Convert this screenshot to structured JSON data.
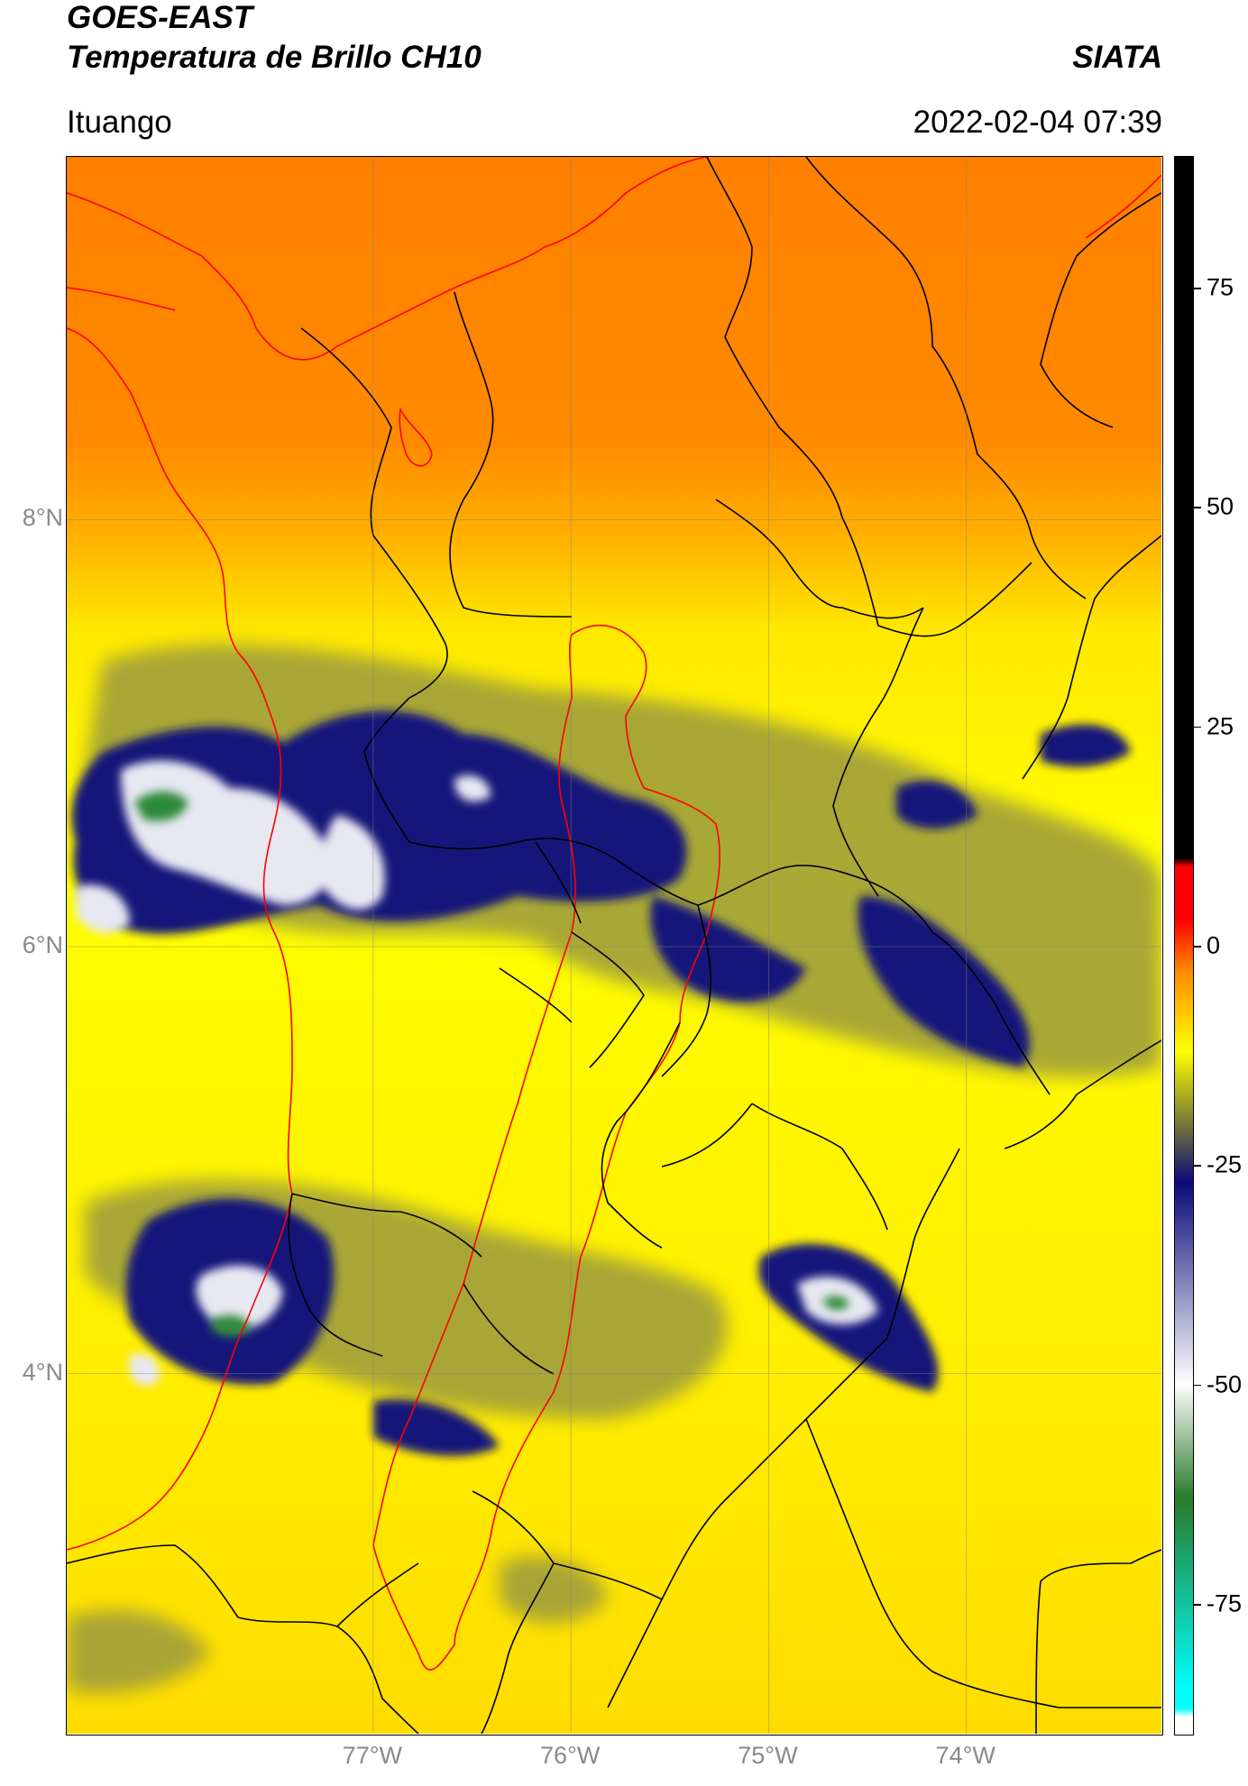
{
  "header": {
    "satellite": "GOES-EAST",
    "product": "Temperatura de Brillo CH10",
    "agency": "SIATA",
    "location": "Ituango",
    "datetime": "2022-02-04 07:39"
  },
  "map": {
    "lat_ticks": [
      {
        "label": "8°N",
        "value": 8
      },
      {
        "label": "6°N",
        "value": 6
      },
      {
        "label": "4°N",
        "value": 4
      }
    ],
    "lon_ticks": [
      {
        "label": "77°W",
        "value": -77
      },
      {
        "label": "76°W",
        "value": -76
      },
      {
        "label": "75°W",
        "value": -75
      },
      {
        "label": "74°W",
        "value": -74
      }
    ],
    "lat_range": [
      2.3,
      9.7
    ],
    "lon_range": [
      -78.55,
      -73.0
    ],
    "grid": true,
    "coastline_color": "#ff0000",
    "antioquia_border_color": "#ff0000",
    "department_border_color": "#000000"
  },
  "colorbar": {
    "ticks": [
      "75",
      "50",
      "25",
      "0",
      "-25",
      "-50",
      "-75"
    ],
    "tick_values": [
      75,
      50,
      25,
      0,
      -25,
      -50,
      -75
    ],
    "range": [
      -90,
      90
    ],
    "colors": {
      "hot": "#000000",
      "red": "#ff0000",
      "orange": "#ff8c00",
      "yellow": "#ffff00",
      "olive": "#6b6b40",
      "navy": "#0a0a7a",
      "white": "#ffffff",
      "green": "#2a7a2a",
      "cyan": "#00ffff"
    }
  }
}
